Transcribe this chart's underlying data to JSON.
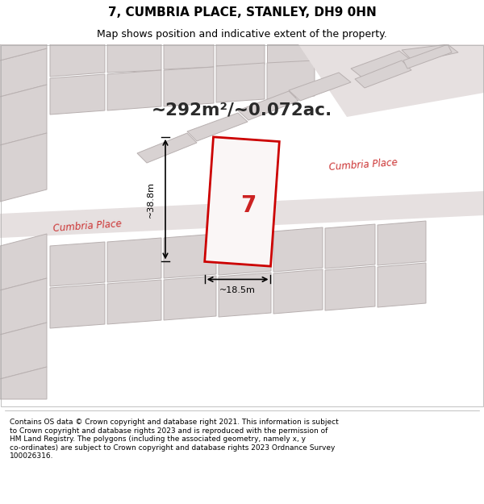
{
  "title_line1": "7, CUMBRIA PLACE, STANLEY, DH9 0HN",
  "title_line2": "Map shows position and indicative extent of the property.",
  "area_text": "~292m²/~0.072ac.",
  "dim_width": "~18.5m",
  "dim_height": "~38.8m",
  "property_number": "7",
  "street_label1": "Cumbria Place",
  "street_label2": "Cumbria Place",
  "footer_text": "Contains OS data © Crown copyright and database right 2021. This information is subject\nto Crown copyright and database rights 2023 and is reproduced with the permission of\nHM Land Registry. The polygons (including the associated geometry, namely x, y\nco-ordinates) are subject to Crown copyright and database rights 2023 Ordnance Survey\n100026316.",
  "bg_color": "#f5f0f0",
  "map_bg": "#f0ecec",
  "highlight_color": "#cc0000",
  "bld_fill": "#d8d2d2",
  "bld_edge": "#b8b0b0",
  "white_bg": "#ffffff"
}
